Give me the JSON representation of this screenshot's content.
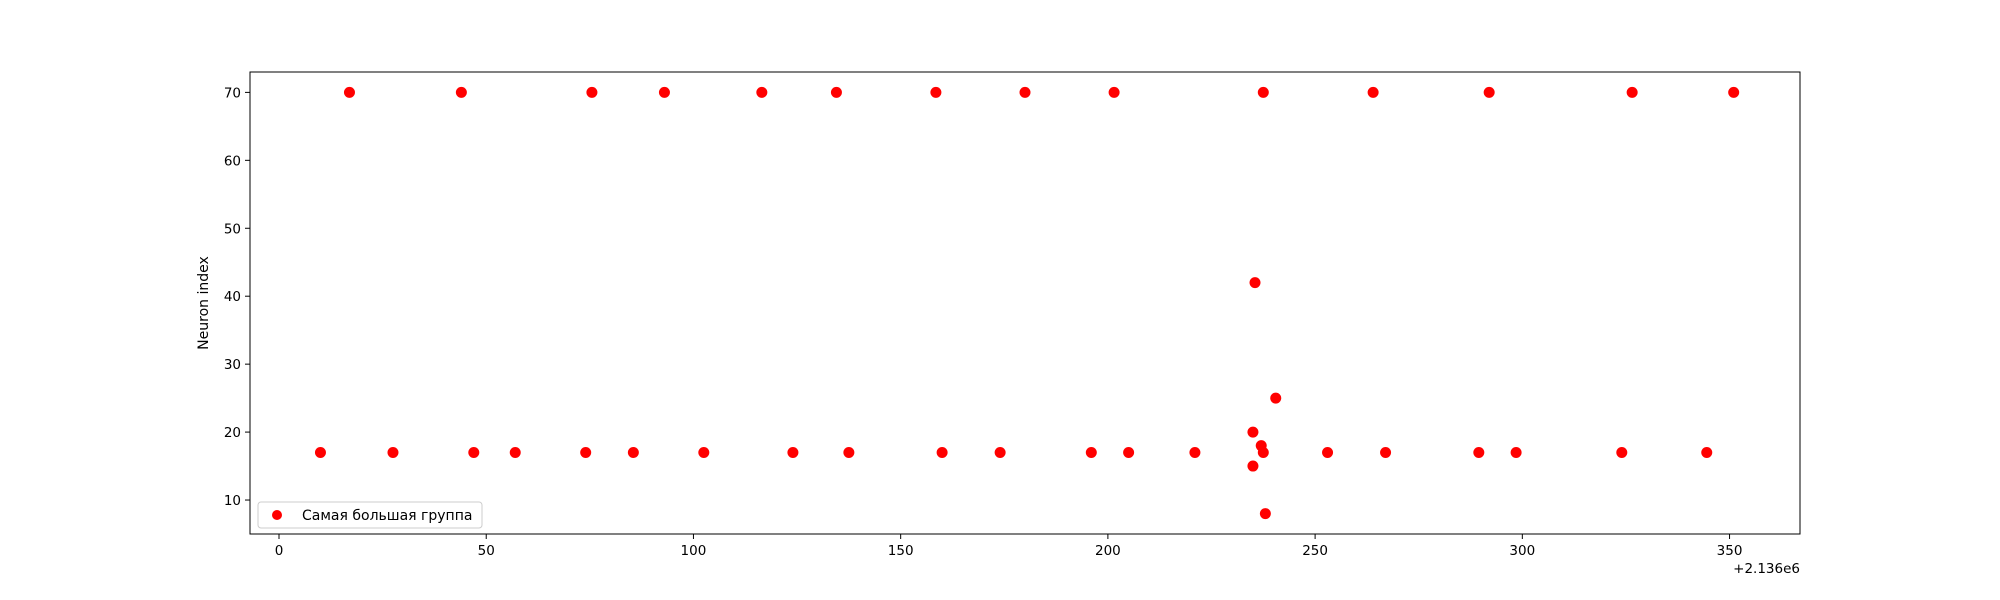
{
  "chart_data": {
    "type": "scatter",
    "title": "",
    "xlabel": "",
    "ylabel": "Neuron index",
    "x_offset_label": "+2.136e6",
    "xlim": [
      -7,
      367
    ],
    "ylim": [
      5,
      73
    ],
    "xticks": [
      0,
      50,
      100,
      150,
      200,
      250,
      300,
      350
    ],
    "xtick_labels": [
      "0",
      "50",
      "100",
      "150",
      "200",
      "250",
      "300",
      "350"
    ],
    "yticks": [
      10,
      20,
      30,
      40,
      50,
      60,
      70
    ],
    "ytick_labels": [
      "10",
      "20",
      "30",
      "40",
      "50",
      "60",
      "70"
    ],
    "grid": false,
    "legend_position": "lower-left",
    "series": [
      {
        "name": "Самая большая группа",
        "color": "#ff0000",
        "x": [
          17,
          44,
          75.5,
          93,
          116.5,
          134.5,
          158.5,
          180,
          201.5,
          237.5,
          264,
          292,
          326.5,
          351,
          10,
          27.5,
          47,
          57,
          74,
          85.5,
          102.5,
          124,
          137.5,
          160,
          174,
          196,
          205,
          221,
          237.5,
          253,
          267,
          289.5,
          298.5,
          324,
          344.5,
          235.5,
          235,
          237,
          240.5,
          235,
          238
        ],
        "y": [
          70,
          70,
          70,
          70,
          70,
          70,
          70,
          70,
          70,
          70,
          70,
          70,
          70,
          70,
          17,
          17,
          17,
          17,
          17,
          17,
          17,
          17,
          17,
          17,
          17,
          17,
          17,
          17,
          17,
          17,
          17,
          17,
          17,
          17,
          17,
          42,
          20,
          18,
          25,
          15,
          8
        ]
      }
    ]
  }
}
